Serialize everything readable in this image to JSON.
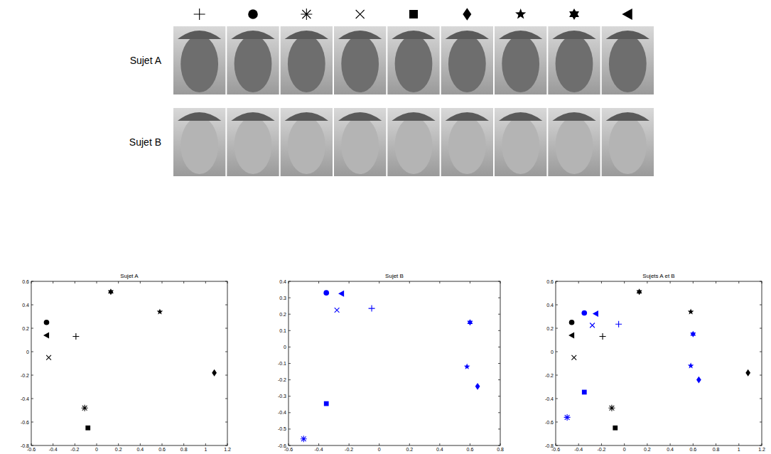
{
  "faces": {
    "rows": [
      "Sujet A",
      "Sujet B"
    ],
    "markers": [
      "plus",
      "circle",
      "asterisk",
      "x",
      "square",
      "diamond",
      "star",
      "hexagram",
      "triangle-left"
    ]
  },
  "chart_data": [
    {
      "type": "scatter",
      "title": "Sujet A",
      "xlim": [
        -0.6,
        1.2
      ],
      "xticks": [
        -0.6,
        -0.4,
        -0.2,
        0,
        0.2,
        0.4,
        0.6,
        0.8,
        1,
        1.2
      ],
      "ylim": [
        -0.8,
        0.6
      ],
      "yticks": [
        -0.8,
        -0.6,
        -0.4,
        -0.2,
        0,
        0.2,
        0.4,
        0.6
      ],
      "series": [
        {
          "name": "Sujet A",
          "color": "#000000",
          "marker": [
            "plus",
            "circle",
            "asterisk",
            "x",
            "square",
            "diamond",
            "star",
            "hexagram",
            "triangle-left"
          ],
          "x": [
            -0.19,
            -0.46,
            -0.11,
            -0.44,
            -0.08,
            1.08,
            0.58,
            0.13,
            -0.46
          ],
          "values": [
            0.13,
            0.25,
            -0.48,
            -0.05,
            -0.65,
            -0.18,
            0.34,
            0.51,
            0.14
          ]
        }
      ]
    },
    {
      "type": "scatter",
      "title": "Sujet B",
      "xlim": [
        -0.6,
        0.8
      ],
      "xticks": [
        -0.6,
        -0.4,
        -0.2,
        0,
        0.2,
        0.4,
        0.6,
        0.8
      ],
      "ylim": [
        -0.6,
        0.4
      ],
      "yticks": [
        -0.6,
        -0.5,
        -0.4,
        -0.3,
        -0.2,
        -0.1,
        0,
        0.1,
        0.2,
        0.3,
        0.4
      ],
      "series": [
        {
          "name": "Sujet B",
          "color": "#0000ff",
          "marker": [
            "plus",
            "circle",
            "asterisk",
            "x",
            "square",
            "diamond",
            "star",
            "hexagram",
            "triangle-left"
          ],
          "x": [
            -0.05,
            -0.35,
            -0.5,
            -0.28,
            -0.35,
            0.65,
            0.58,
            0.6,
            -0.25
          ],
          "values": [
            0.235,
            0.33,
            -0.56,
            0.225,
            -0.345,
            -0.24,
            -0.12,
            0.15,
            0.325
          ]
        }
      ]
    },
    {
      "type": "scatter",
      "title": "Sujets A et B",
      "xlim": [
        -0.6,
        1.2
      ],
      "xticks": [
        -0.6,
        -0.4,
        -0.2,
        0,
        0.2,
        0.4,
        0.6,
        0.8,
        1,
        1.2
      ],
      "ylim": [
        -0.8,
        0.6
      ],
      "yticks": [
        -0.8,
        -0.6,
        -0.4,
        -0.2,
        0,
        0.2,
        0.4,
        0.6
      ],
      "series": [
        {
          "name": "Sujet A",
          "color": "#000000",
          "marker": [
            "plus",
            "circle",
            "asterisk",
            "x",
            "square",
            "diamond",
            "star",
            "hexagram",
            "triangle-left"
          ],
          "x": [
            -0.19,
            -0.46,
            -0.11,
            -0.44,
            -0.08,
            1.08,
            0.58,
            0.13,
            -0.46
          ],
          "values": [
            0.13,
            0.25,
            -0.48,
            -0.05,
            -0.65,
            -0.18,
            0.34,
            0.51,
            0.14
          ]
        },
        {
          "name": "Sujet B",
          "color": "#0000ff",
          "marker": [
            "plus",
            "circle",
            "asterisk",
            "x",
            "square",
            "diamond",
            "star",
            "hexagram",
            "triangle-left"
          ],
          "x": [
            -0.05,
            -0.35,
            -0.5,
            -0.28,
            -0.35,
            0.65,
            0.58,
            0.6,
            -0.25
          ],
          "values": [
            0.235,
            0.33,
            -0.56,
            0.225,
            -0.345,
            -0.24,
            -0.12,
            0.15,
            0.325
          ]
        }
      ]
    }
  ]
}
